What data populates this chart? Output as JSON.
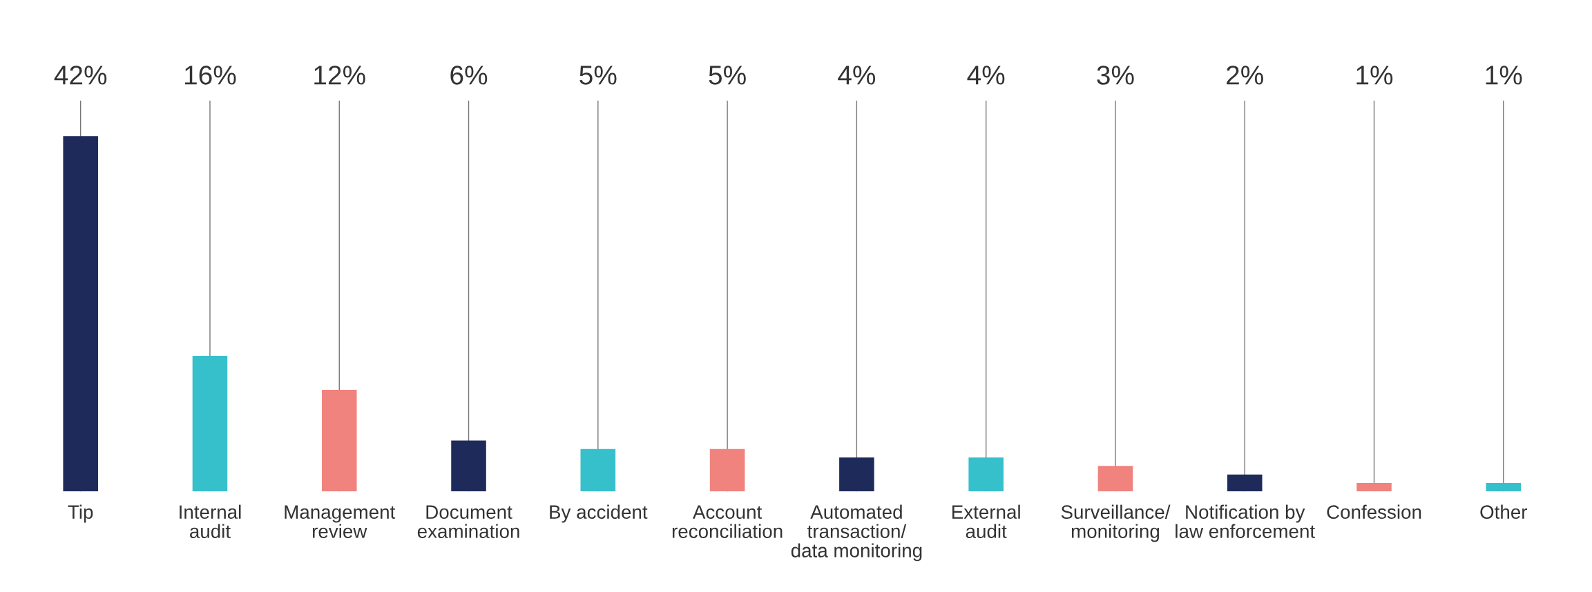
{
  "chart_data": {
    "type": "bar",
    "categories": [
      "Tip",
      "Internal\naudit",
      "Management\nreview",
      "Document\nexamination",
      "By accident",
      "Account\nreconciliation",
      "Automated\ntransaction/\ndata monitoring",
      "External\naudit",
      "Surveillance/\nmonitoring",
      "Notification by\nlaw enforcement",
      "Confession",
      "Other"
    ],
    "values": [
      42,
      16,
      12,
      6,
      5,
      5,
      4,
      4,
      3,
      2,
      1,
      1
    ],
    "colors": [
      "#1e2a5a",
      "#36c0cb",
      "#f0837d",
      "#1e2a5a",
      "#36c0cb",
      "#f0837d",
      "#1e2a5a",
      "#36c0cb",
      "#f0837d",
      "#1e2a5a",
      "#f0837d",
      "#36c0cb"
    ],
    "grid": "x",
    "value_labels": [
      "42%",
      "16%",
      "12%",
      "6%",
      "5%",
      "5%",
      "4%",
      "4%",
      "3%",
      "2%",
      "1%",
      "1%"
    ]
  }
}
